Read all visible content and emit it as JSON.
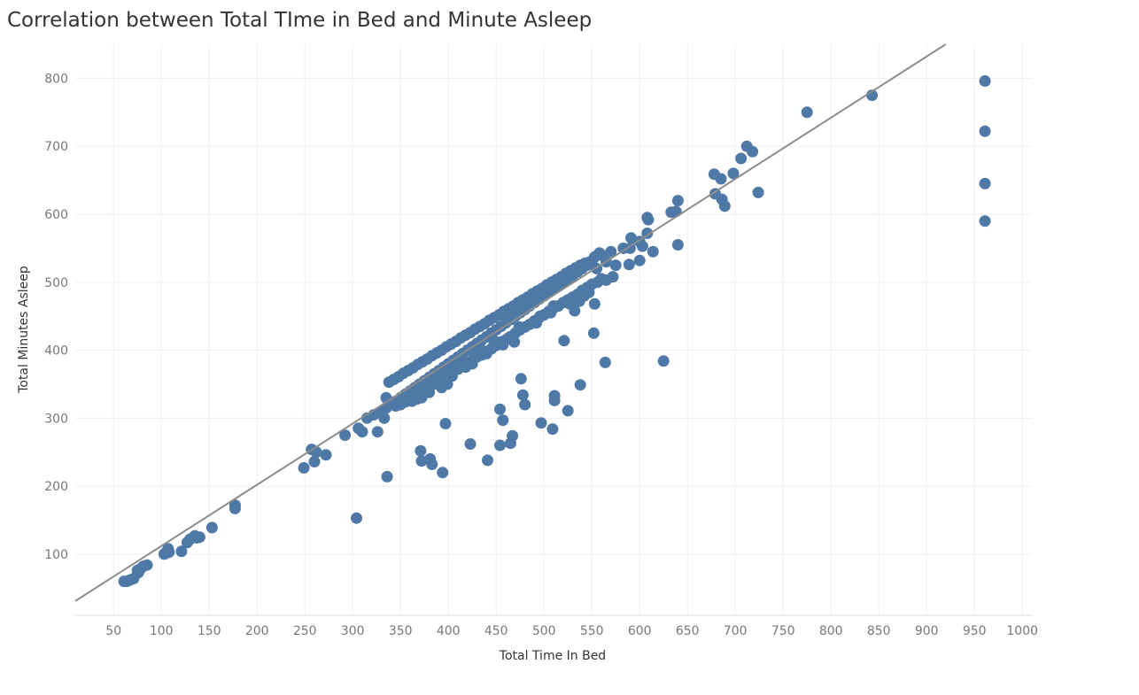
{
  "page": {
    "title": "Correlation between Total TIme in Bed and Minute Asleep"
  },
  "colors": {
    "point": "#4e79a7",
    "trend": "#8c8c8c",
    "grid": "#efefef",
    "tick_text": "#777777",
    "axis_title": "#333333"
  },
  "chart_data": {
    "type": "scatter",
    "title": "Correlation between Total TIme in Bed and Minute Asleep",
    "xlabel": "Total Time In Bed",
    "ylabel": "Total Minutes Asleep",
    "xlim": [
      10,
      1010
    ],
    "ylim": [
      10,
      850
    ],
    "x_ticks": [
      50,
      100,
      150,
      200,
      250,
      300,
      350,
      400,
      450,
      500,
      550,
      600,
      650,
      700,
      750,
      800,
      850,
      900,
      950,
      1000
    ],
    "y_ticks": [
      100,
      200,
      300,
      400,
      500,
      600,
      700,
      800
    ],
    "grid": true,
    "legend": "none",
    "trend_line": {
      "slope": 0.9,
      "intercept": 22
    },
    "points": [
      [
        961,
        796
      ],
      [
        961,
        722
      ],
      [
        961,
        645
      ],
      [
        961,
        590
      ],
      [
        843,
        775
      ],
      [
        775,
        750
      ],
      [
        712,
        700
      ],
      [
        718,
        692
      ],
      [
        706,
        682
      ],
      [
        698,
        660
      ],
      [
        678,
        659
      ],
      [
        685,
        652
      ],
      [
        679,
        630
      ],
      [
        686,
        622
      ],
      [
        689,
        612
      ],
      [
        724,
        632
      ],
      [
        640,
        620
      ],
      [
        608,
        595
      ],
      [
        633,
        603
      ],
      [
        638,
        604
      ],
      [
        609,
        592
      ],
      [
        640,
        555
      ],
      [
        608,
        572
      ],
      [
        614,
        545
      ],
      [
        603,
        553
      ],
      [
        600,
        560
      ],
      [
        591,
        565
      ],
      [
        590,
        550
      ],
      [
        583,
        550
      ],
      [
        600,
        532
      ],
      [
        589,
        526
      ],
      [
        570,
        545
      ],
      [
        575,
        525
      ],
      [
        560,
        540
      ],
      [
        565,
        530
      ],
      [
        555,
        520
      ],
      [
        550,
        530
      ],
      [
        545,
        525
      ],
      [
        540,
        520
      ],
      [
        535,
        515
      ],
      [
        530,
        510
      ],
      [
        525,
        505
      ],
      [
        520,
        500
      ],
      [
        515,
        495
      ],
      [
        510,
        490
      ],
      [
        505,
        485
      ],
      [
        500,
        480
      ],
      [
        495,
        475
      ],
      [
        490,
        470
      ],
      [
        485,
        465
      ],
      [
        480,
        460
      ],
      [
        475,
        455
      ],
      [
        470,
        450
      ],
      [
        465,
        445
      ],
      [
        460,
        440
      ],
      [
        455,
        435
      ],
      [
        450,
        430
      ],
      [
        445,
        425
      ],
      [
        440,
        420
      ],
      [
        435,
        415
      ],
      [
        430,
        410
      ],
      [
        425,
        405
      ],
      [
        420,
        400
      ],
      [
        415,
        395
      ],
      [
        410,
        390
      ],
      [
        405,
        385
      ],
      [
        400,
        380
      ],
      [
        395,
        375
      ],
      [
        390,
        370
      ],
      [
        385,
        365
      ],
      [
        380,
        360
      ],
      [
        375,
        355
      ],
      [
        370,
        350
      ],
      [
        365,
        345
      ],
      [
        360,
        340
      ],
      [
        355,
        335
      ],
      [
        350,
        330
      ],
      [
        345,
        325
      ],
      [
        340,
        320
      ],
      [
        335,
        315
      ],
      [
        330,
        310
      ],
      [
        548,
        530
      ],
      [
        553,
        537
      ],
      [
        558,
        543
      ],
      [
        543,
        528
      ],
      [
        538,
        525
      ],
      [
        533,
        521
      ],
      [
        528,
        517
      ],
      [
        523,
        513
      ],
      [
        518,
        508
      ],
      [
        513,
        504
      ],
      [
        508,
        500
      ],
      [
        503,
        496
      ],
      [
        498,
        491
      ],
      [
        493,
        487
      ],
      [
        488,
        483
      ],
      [
        483,
        478
      ],
      [
        478,
        474
      ],
      [
        473,
        470
      ],
      [
        468,
        465
      ],
      [
        463,
        461
      ],
      [
        458,
        457
      ],
      [
        453,
        452
      ],
      [
        448,
        448
      ],
      [
        443,
        444
      ],
      [
        438,
        439
      ],
      [
        433,
        435
      ],
      [
        428,
        431
      ],
      [
        423,
        426
      ],
      [
        418,
        422
      ],
      [
        413,
        418
      ],
      [
        408,
        413
      ],
      [
        403,
        409
      ],
      [
        398,
        405
      ],
      [
        393,
        400
      ],
      [
        388,
        396
      ],
      [
        383,
        392
      ],
      [
        378,
        387
      ],
      [
        373,
        383
      ],
      [
        368,
        379
      ],
      [
        363,
        374
      ],
      [
        358,
        370
      ],
      [
        353,
        366
      ],
      [
        348,
        361
      ],
      [
        343,
        357
      ],
      [
        338,
        353
      ],
      [
        560,
        505
      ],
      [
        556,
        500
      ],
      [
        550,
        497
      ],
      [
        545,
        492
      ],
      [
        540,
        488
      ],
      [
        535,
        482
      ],
      [
        530,
        478
      ],
      [
        525,
        474
      ],
      [
        520,
        470
      ],
      [
        515,
        465
      ],
      [
        510,
        462
      ],
      [
        505,
        457
      ],
      [
        500,
        452
      ],
      [
        495,
        448
      ],
      [
        490,
        443
      ],
      [
        485,
        438
      ],
      [
        480,
        434
      ],
      [
        475,
        430
      ],
      [
        470,
        425
      ],
      [
        465,
        420
      ],
      [
        460,
        415
      ],
      [
        455,
        412
      ],
      [
        450,
        407
      ],
      [
        445,
        402
      ],
      [
        440,
        398
      ],
      [
        435,
        393
      ],
      [
        430,
        390
      ],
      [
        425,
        385
      ],
      [
        420,
        381
      ],
      [
        415,
        377
      ],
      [
        410,
        372
      ],
      [
        405,
        368
      ],
      [
        400,
        363
      ],
      [
        395,
        358
      ],
      [
        390,
        354
      ],
      [
        385,
        350
      ],
      [
        380,
        346
      ],
      [
        375,
        341
      ],
      [
        370,
        337
      ],
      [
        365,
        333
      ],
      [
        360,
        328
      ],
      [
        355,
        324
      ],
      [
        350,
        320
      ],
      [
        345,
        318
      ],
      [
        340,
        322
      ],
      [
        335,
        330
      ],
      [
        572,
        508
      ],
      [
        565,
        503
      ],
      [
        553,
        468
      ],
      [
        547,
        485
      ],
      [
        542,
        480
      ],
      [
        537,
        472
      ],
      [
        532,
        458
      ],
      [
        527,
        468
      ],
      [
        510,
        465
      ],
      [
        507,
        455
      ],
      [
        496,
        450
      ],
      [
        492,
        440
      ],
      [
        474,
        434
      ],
      [
        469,
        412
      ],
      [
        463,
        418
      ],
      [
        457,
        408
      ],
      [
        447,
        415
      ],
      [
        440,
        395
      ],
      [
        435,
        400
      ],
      [
        427,
        392
      ],
      [
        425,
        380
      ],
      [
        418,
        375
      ],
      [
        413,
        385
      ],
      [
        408,
        375
      ],
      [
        404,
        362
      ],
      [
        399,
        350
      ],
      [
        393,
        345
      ],
      [
        386,
        360
      ],
      [
        380,
        338
      ],
      [
        372,
        330
      ],
      [
        367,
        328
      ],
      [
        362,
        325
      ],
      [
        356,
        335
      ],
      [
        348,
        325
      ],
      [
        340,
        320
      ],
      [
        333,
        300
      ],
      [
        326,
        280
      ],
      [
        322,
        305
      ],
      [
        315,
        300
      ],
      [
        310,
        280
      ],
      [
        306,
        285
      ],
      [
        292,
        275
      ],
      [
        552,
        425
      ],
      [
        564,
        382
      ],
      [
        521,
        414
      ],
      [
        625,
        384
      ],
      [
        476,
        358
      ],
      [
        478,
        334
      ],
      [
        480,
        320
      ],
      [
        511,
        333
      ],
      [
        511,
        326
      ],
      [
        525,
        311
      ],
      [
        538,
        349
      ],
      [
        454,
        313
      ],
      [
        457,
        297
      ],
      [
        497,
        293
      ],
      [
        509,
        284
      ],
      [
        467,
        274
      ],
      [
        465,
        263
      ],
      [
        454,
        260
      ],
      [
        423,
        262
      ],
      [
        441,
        238
      ],
      [
        397,
        292
      ],
      [
        371,
        252
      ],
      [
        372,
        237
      ],
      [
        381,
        240
      ],
      [
        383,
        232
      ],
      [
        394,
        220
      ],
      [
        336,
        214
      ],
      [
        257,
        254
      ],
      [
        260,
        236
      ],
      [
        262,
        250
      ],
      [
        272,
        246
      ],
      [
        249,
        227
      ],
      [
        304,
        153
      ],
      [
        177,
        172
      ],
      [
        177,
        167
      ],
      [
        153,
        139
      ],
      [
        140,
        125
      ],
      [
        135,
        127
      ],
      [
        137,
        124
      ],
      [
        130,
        122
      ],
      [
        127,
        117
      ],
      [
        121,
        104
      ],
      [
        108,
        103
      ],
      [
        107,
        108
      ],
      [
        104,
        101
      ],
      [
        103,
        100
      ],
      [
        85,
        84
      ],
      [
        81,
        82
      ],
      [
        78,
        78
      ],
      [
        75,
        76
      ],
      [
        76,
        73
      ],
      [
        71,
        64
      ],
      [
        67,
        62
      ],
      [
        64,
        60
      ],
      [
        61,
        60
      ]
    ]
  }
}
